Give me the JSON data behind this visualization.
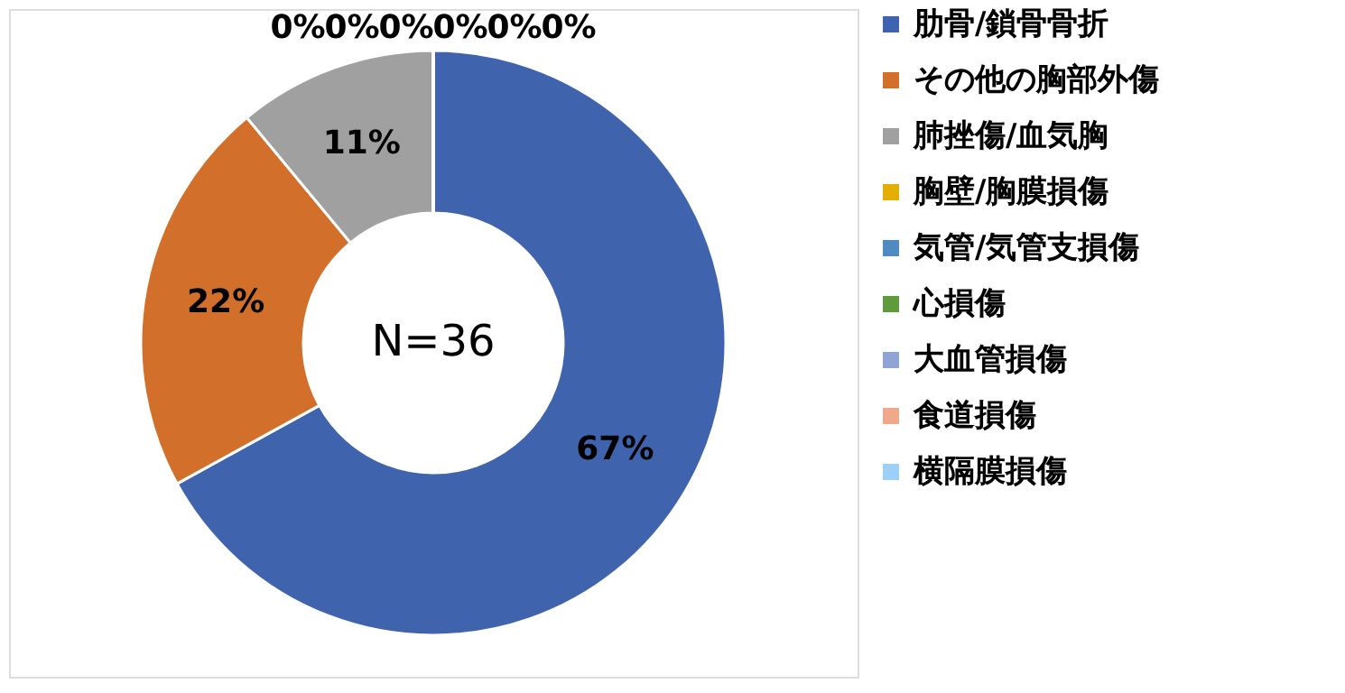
{
  "chart_data": {
    "type": "donut",
    "categories": [
      "肋骨/鎖骨骨折",
      "その他の胸部外傷",
      "肺挫傷/血気胸",
      "胸壁/胸膜損傷",
      "気管/気管支損傷",
      "心損傷",
      "大血管損傷",
      "食道損傷",
      "横隔膜損傷"
    ],
    "values": [
      67,
      22,
      11,
      0,
      0,
      0,
      0,
      0,
      0
    ],
    "colors": [
      "#3f64ad",
      "#d2702b",
      "#a0a0a0",
      "#e4ae00",
      "#4f8bc0",
      "#5f9a3c",
      "#8fa4d4",
      "#f0a88a",
      "#9dcff8"
    ],
    "value_labels": [
      "67%",
      "22%",
      "11%",
      "0%",
      "0%",
      "0%",
      "0%",
      "0%",
      "0%"
    ],
    "annotations": [
      "N=36"
    ],
    "legend": "right"
  }
}
